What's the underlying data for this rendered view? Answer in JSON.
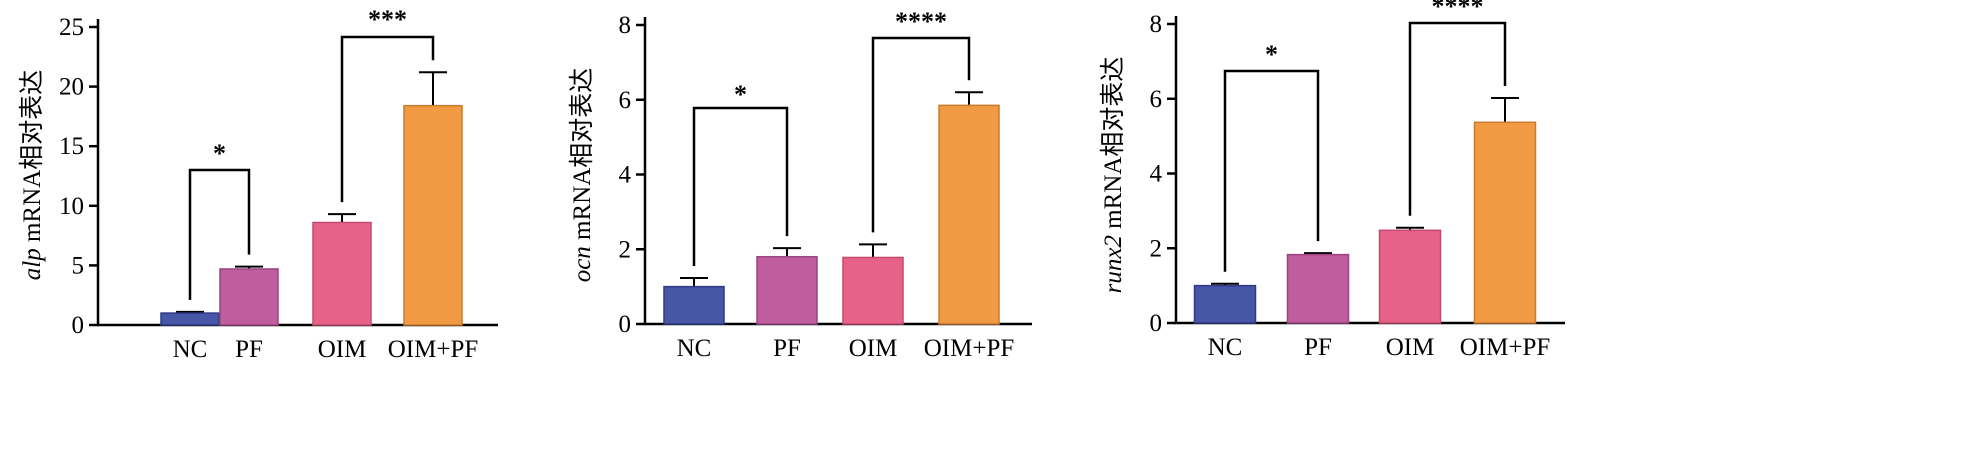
{
  "chart_data": [
    {
      "type": "bar",
      "ylabel_gene": "alp",
      "ylabel_suffix": " mRNA相对表达",
      "categories": [
        "NC",
        "PF",
        "OIM",
        "OIM+PF"
      ],
      "values": [
        1.0,
        4.7,
        8.6,
        18.4
      ],
      "errors": [
        0.1,
        0.2,
        0.7,
        2.8
      ],
      "ylim": [
        0,
        25
      ],
      "yticks": [
        0,
        5,
        10,
        15,
        20,
        25
      ],
      "significance": [
        {
          "from": 0,
          "to": 1,
          "label": "*"
        },
        {
          "from": 2,
          "to": 3,
          "label": "***"
        }
      ]
    },
    {
      "type": "bar",
      "ylabel_gene": "ocn",
      "ylabel_suffix": " mRNA相对表达",
      "categories": [
        "NC",
        "PF",
        "OIM",
        "OIM+PF"
      ],
      "values": [
        1.0,
        1.8,
        1.78,
        5.85
      ],
      "errors": [
        0.23,
        0.23,
        0.35,
        0.35
      ],
      "ylim": [
        0,
        8
      ],
      "yticks": [
        0,
        2,
        4,
        6,
        8
      ],
      "significance": [
        {
          "from": 0,
          "to": 1,
          "label": "*"
        },
        {
          "from": 2,
          "to": 3,
          "label": "****"
        }
      ]
    },
    {
      "type": "bar",
      "ylabel_gene": "runx2",
      "ylabel_suffix": " mRNA相对表达",
      "categories": [
        "NC",
        "PF",
        "OIM",
        "OIM+PF"
      ],
      "values": [
        1.0,
        1.83,
        2.48,
        5.37
      ],
      "errors": [
        0.05,
        0.04,
        0.07,
        0.65
      ],
      "ylim": [
        0,
        8
      ],
      "yticks": [
        0,
        2,
        4,
        6,
        8
      ],
      "significance": [
        {
          "from": 0,
          "to": 1,
          "label": "*"
        },
        {
          "from": 2,
          "to": 3,
          "label": "****"
        }
      ]
    }
  ],
  "colors": {
    "bars": [
      "#4756a6",
      "#c05d9f",
      "#e86189",
      "#f19a43"
    ],
    "bar_edges": [
      "#2f3a82",
      "#9a4580",
      "#c24a6e",
      "#c97b2f"
    ]
  }
}
